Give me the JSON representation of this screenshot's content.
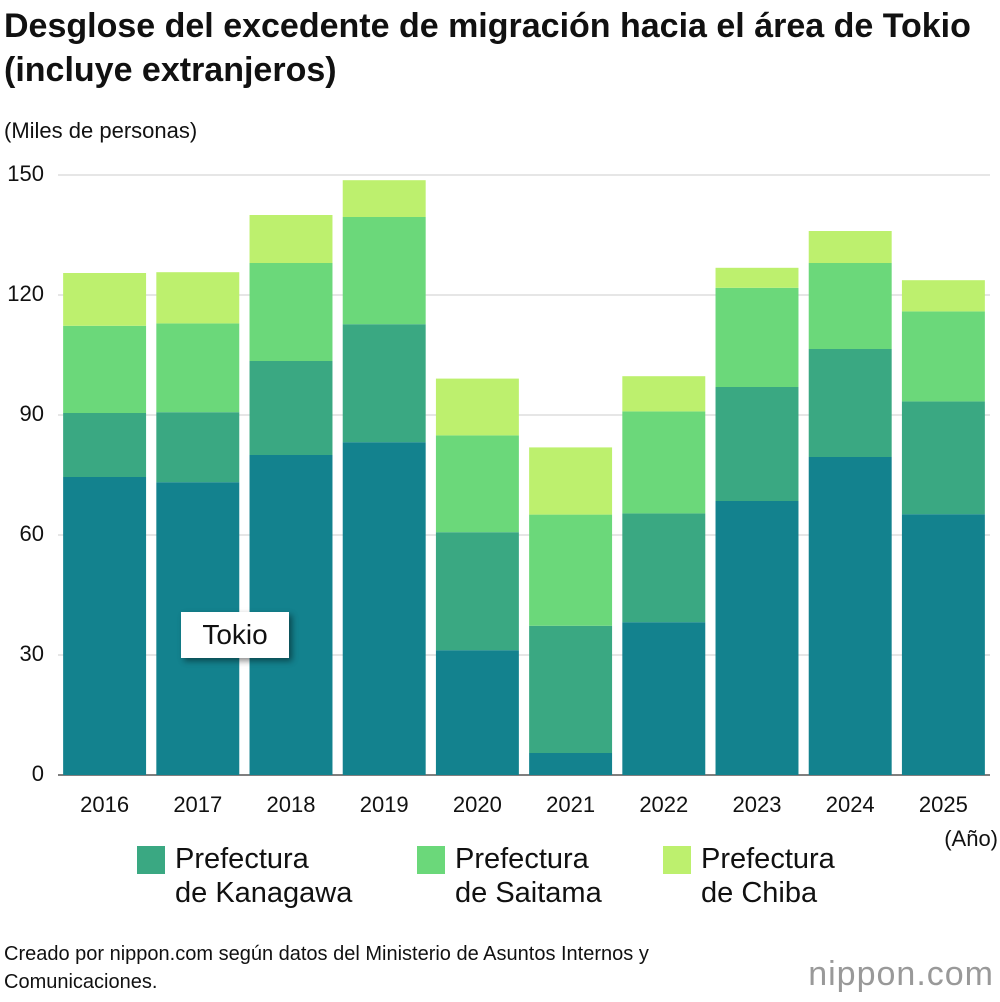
{
  "chart_data": {
    "type": "stacked_bar",
    "title": "Desglose del excedente de migración hacia el área de Tokio (incluye extranjeros)",
    "y_label": "(Miles de personas)",
    "x_label": "(Año)",
    "categories": [
      "2016",
      "2017",
      "2018",
      "2019",
      "2020",
      "2021",
      "2022",
      "2023",
      "2024",
      "2025"
    ],
    "series": [
      {
        "name": "Tokio",
        "color": "#13828e",
        "values": [
          74.5,
          73.2,
          80.0,
          83.2,
          31.2,
          5.5,
          38.2,
          68.5,
          79.5,
          65.2
        ]
      },
      {
        "name": "Prefectura\nde Kanagawa",
        "color": "#3aa882",
        "values": [
          16.0,
          17.5,
          23.5,
          29.5,
          29.5,
          31.8,
          27.2,
          28.5,
          27.0,
          28.2
        ]
      },
      {
        "name": "Prefectura\nde Saitama",
        "color": "#6bd87a",
        "values": [
          21.8,
          22.2,
          24.5,
          26.8,
          24.2,
          27.8,
          25.5,
          24.8,
          21.5,
          22.5
        ]
      },
      {
        "name": "Prefectura\nde Chiba",
        "color": "#bdf06e",
        "values": [
          13.2,
          12.8,
          12.0,
          9.2,
          14.2,
          16.8,
          8.8,
          5.0,
          8.0,
          7.8
        ]
      }
    ],
    "ylim": [
      0,
      150
    ],
    "yticks": [
      0,
      30,
      60,
      90,
      120,
      150
    ],
    "grid": true,
    "source": "Creado por nippon.com según datos del Ministerio de Asuntos Internos y Comunicaciones.",
    "logo": "nippon.com"
  }
}
